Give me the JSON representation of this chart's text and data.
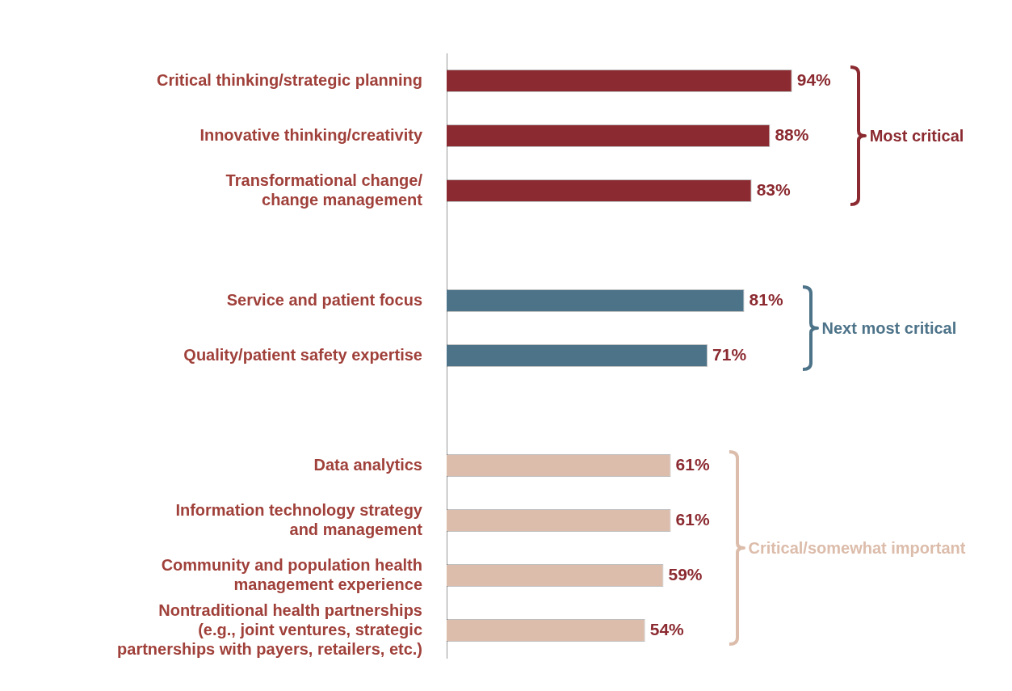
{
  "chart_data": {
    "type": "bar",
    "orientation": "horizontal",
    "categories": [
      "Critical thinking/strategic planning",
      "Innovative thinking/creativity",
      "Transformational change/\nchange management",
      null,
      "Service and patient focus",
      "Quality/patient safety expertise",
      null,
      "Data analytics",
      "Information technology strategy\nand management",
      "Community and population health\nmanagement experience",
      "Nontraditional health partnerships\n(e.g., joint ventures, strategic\npartnerships with payers, retailers, etc.)"
    ],
    "values": [
      94,
      88,
      83,
      null,
      81,
      71,
      null,
      61,
      61,
      59,
      54
    ],
    "value_labels": [
      "94%",
      "88%",
      "83%",
      null,
      "81%",
      "71%",
      null,
      "61%",
      "61%",
      "59%",
      "54%"
    ],
    "colors": [
      "#8b2a30",
      "#8b2a30",
      "#8b2a30",
      null,
      "#4d7389",
      "#4d7389",
      null,
      "#dcbcaa",
      "#dcbcaa",
      "#dcbcaa",
      "#dcbcaa"
    ],
    "annotations": [
      "Most critical",
      "Next most critical",
      "Critical/somewhat important"
    ],
    "legend": false
  }
}
